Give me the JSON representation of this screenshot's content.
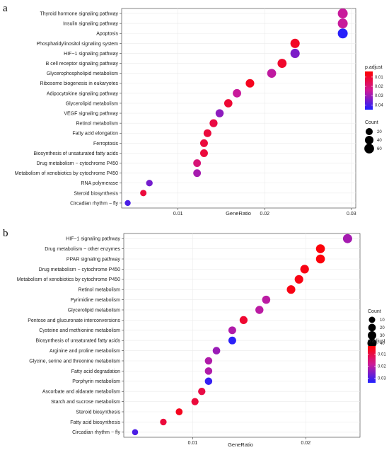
{
  "chart_data": [
    {
      "panel": "a",
      "type": "scatter",
      "xlabel": "GeneRatio",
      "ylabel": "",
      "xlim": [
        0.0035,
        0.0305
      ],
      "xticks": [
        {
          "value": 0.01,
          "label": "0.01"
        },
        {
          "value": 0.02,
          "label": "0.02"
        },
        {
          "value": 0.03,
          "label": "0.03"
        }
      ],
      "grid": true,
      "points": [
        {
          "label": "Thyroid hormone signaling pathway",
          "x": 0.029,
          "count": 64,
          "p_adjust": 0.025
        },
        {
          "label": "Insulin signaling pathway",
          "x": 0.029,
          "count": 64,
          "p_adjust": 0.025
        },
        {
          "label": "Apoptosis",
          "x": 0.029,
          "count": 64,
          "p_adjust": 0.044
        },
        {
          "label": "Phosphatidylinositol signaling system",
          "x": 0.0235,
          "count": 52,
          "p_adjust": 0.009
        },
        {
          "label": "HIF−1 signaling pathway",
          "x": 0.0235,
          "count": 52,
          "p_adjust": 0.034
        },
        {
          "label": "B cell receptor signaling pathway",
          "x": 0.022,
          "count": 48,
          "p_adjust": 0.01
        },
        {
          "label": "Glycerophospholipid metabolism",
          "x": 0.0208,
          "count": 46,
          "p_adjust": 0.026
        },
        {
          "label": "Ribosome biogenesis in eukaryotes",
          "x": 0.0183,
          "count": 40,
          "p_adjust": 0.008
        },
        {
          "label": "Adipocytokine signaling pathway",
          "x": 0.0168,
          "count": 37,
          "p_adjust": 0.025
        },
        {
          "label": "Glycerolipid metabolism",
          "x": 0.0158,
          "count": 35,
          "p_adjust": 0.011
        },
        {
          "label": "VEGF signaling pathway",
          "x": 0.0148,
          "count": 33,
          "p_adjust": 0.032
        },
        {
          "label": "Retinol metabolism",
          "x": 0.0141,
          "count": 31,
          "p_adjust": 0.013
        },
        {
          "label": "Fatty acid elongation",
          "x": 0.0134,
          "count": 29,
          "p_adjust": 0.012
        },
        {
          "label": "Ferroptosis",
          "x": 0.013,
          "count": 28,
          "p_adjust": 0.012
        },
        {
          "label": "Biosynthesis of unsaturated fatty acids",
          "x": 0.013,
          "count": 28,
          "p_adjust": 0.012
        },
        {
          "label": "Drug metabolism − cytochrome P450",
          "x": 0.0122,
          "count": 27,
          "p_adjust": 0.02
        },
        {
          "label": "Metabolism of xenobiotics by cytochrome P450",
          "x": 0.0122,
          "count": 27,
          "p_adjust": 0.029
        },
        {
          "label": "RNA polymerase",
          "x": 0.0067,
          "count": 15,
          "p_adjust": 0.035
        },
        {
          "label": "Steroid biosynthesis",
          "x": 0.006,
          "count": 13,
          "p_adjust": 0.012
        },
        {
          "label": "Circadian rhythm − fly",
          "x": 0.0042,
          "count": 9,
          "p_adjust": 0.04
        }
      ],
      "size_legend": {
        "title": "Count",
        "values": [
          20,
          40,
          60
        ]
      },
      "color_legend": {
        "title": "p.adjust",
        "ticks": [
          0.01,
          0.02,
          0.03,
          0.04
        ],
        "range": [
          0.004,
          0.045
        ],
        "low_color": "#ff0000",
        "high_color": "#2020ff"
      }
    },
    {
      "panel": "b",
      "type": "scatter",
      "xlabel": "GeneRatio",
      "ylabel": "",
      "xlim": [
        0.0039,
        0.0248
      ],
      "xticks": [
        {
          "value": 0.01,
          "label": "0.01"
        },
        {
          "value": 0.02,
          "label": "0.02"
        }
      ],
      "grid": true,
      "points": [
        {
          "label": "HIF−1 signaling pathway",
          "x": 0.0237,
          "count": 40,
          "p_adjust": 0.022
        },
        {
          "label": "Drug metabolism − other enzymes",
          "x": 0.0213,
          "count": 36,
          "p_adjust": 0.004
        },
        {
          "label": "PPAR signaling pathway",
          "x": 0.0213,
          "count": 36,
          "p_adjust": 0.004
        },
        {
          "label": "Drug metabolism − cytochrome P450",
          "x": 0.0199,
          "count": 33,
          "p_adjust": 0.005
        },
        {
          "label": "Metabolism of xenobiotics by cytochrome P450",
          "x": 0.0194,
          "count": 32,
          "p_adjust": 0.005
        },
        {
          "label": "Retinol metabolism",
          "x": 0.0187,
          "count": 31,
          "p_adjust": 0.005
        },
        {
          "label": "Pyrimidine metabolism",
          "x": 0.0165,
          "count": 27,
          "p_adjust": 0.02
        },
        {
          "label": "Glycerolipid metabolism",
          "x": 0.0159,
          "count": 26,
          "p_adjust": 0.02
        },
        {
          "label": "Pentose and glucuronate interconversions",
          "x": 0.0145,
          "count": 24,
          "p_adjust": 0.008
        },
        {
          "label": "Cysteine and methionine metabolism",
          "x": 0.0135,
          "count": 22,
          "p_adjust": 0.021
        },
        {
          "label": "Biosynthesis of unsaturated fatty acids",
          "x": 0.0135,
          "count": 22,
          "p_adjust": 0.033
        },
        {
          "label": "Arginine and proline metabolism",
          "x": 0.0121,
          "count": 20,
          "p_adjust": 0.023
        },
        {
          "label": "Glycine, serine and threonine metabolism",
          "x": 0.0114,
          "count": 19,
          "p_adjust": 0.021
        },
        {
          "label": "Fatty acid degradation",
          "x": 0.0114,
          "count": 19,
          "p_adjust": 0.021
        },
        {
          "label": "Porphyrin metabolism",
          "x": 0.0114,
          "count": 19,
          "p_adjust": 0.032
        },
        {
          "label": "Ascorbate and aldarate metabolism",
          "x": 0.0108,
          "count": 18,
          "p_adjust": 0.01
        },
        {
          "label": "Starch and sucrose metabolism",
          "x": 0.0102,
          "count": 17,
          "p_adjust": 0.009
        },
        {
          "label": "Steroid biosynthesis",
          "x": 0.0088,
          "count": 14,
          "p_adjust": 0.006
        },
        {
          "label": "Fatty acid biosynthesis",
          "x": 0.0074,
          "count": 12,
          "p_adjust": 0.009
        },
        {
          "label": "Circadian rhythm − fly",
          "x": 0.0049,
          "count": 8,
          "p_adjust": 0.03
        }
      ],
      "size_legend": {
        "title": "Count",
        "values": [
          10,
          20,
          30,
          40
        ]
      },
      "color_legend": {
        "title": "p.adjust",
        "ticks": [
          0.01,
          0.02,
          0.03
        ],
        "range": [
          0.003,
          0.034
        ],
        "low_color": "#ff0000",
        "high_color": "#2020ff"
      }
    }
  ]
}
